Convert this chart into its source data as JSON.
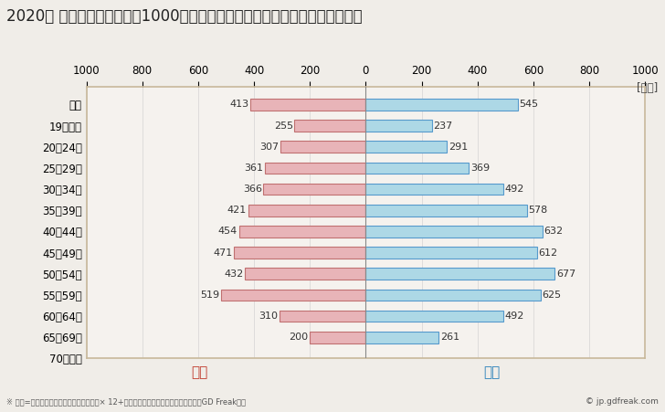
{
  "title": "2020年 民間企業（従業者数1000人以上）フルタイム労働者の男女別平均年収",
  "unit_label": "[万円]",
  "categories": [
    "全体",
    "19歳以下",
    "20〜24歳",
    "25〜29歳",
    "30〜34歳",
    "35〜39歳",
    "40〜44歳",
    "45〜49歳",
    "50〜54歳",
    "55〜59歳",
    "60〜64歳",
    "65〜69歳",
    "70歳以上"
  ],
  "female_values": [
    413,
    255,
    307,
    361,
    366,
    421,
    454,
    471,
    432,
    519,
    310,
    200,
    0
  ],
  "male_values": [
    545,
    237,
    291,
    369,
    492,
    578,
    632,
    612,
    677,
    625,
    492,
    261,
    0
  ],
  "female_color": "#e8b4b8",
  "male_color": "#add8e6",
  "female_border_color": "#c07070",
  "male_border_color": "#5599cc",
  "female_label": "女性",
  "male_label": "男性",
  "female_label_color": "#c0392b",
  "male_label_color": "#2980b9",
  "xlim": [
    -1000,
    1000
  ],
  "xticks": [
    -1000,
    -800,
    -600,
    -400,
    -200,
    0,
    200,
    400,
    600,
    800,
    1000
  ],
  "xticklabels": [
    "1000",
    "800",
    "600",
    "400",
    "200",
    "0",
    "200",
    "400",
    "600",
    "800",
    "1000"
  ],
  "footnote": "※ 年収=「きまって支給する現金給与額」× 12+「年間賞与その他特別給与額」としてGD Freak推計",
  "copyright": "© jp.gdfreak.com",
  "background_color": "#f0ede8",
  "plot_bg_color": "#f5f2ee",
  "border_color": "#c8b89a",
  "title_fontsize": 12,
  "tick_fontsize": 8.5,
  "bar_value_fontsize": 8,
  "legend_fontsize": 11,
  "bar_height": 0.55
}
